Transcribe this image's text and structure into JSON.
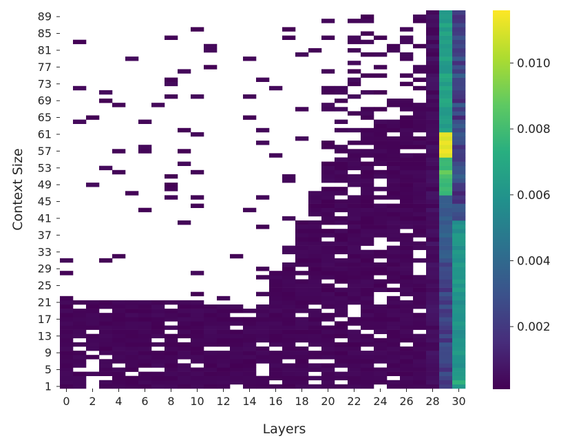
{
  "chart_data": {
    "type": "heatmap",
    "title": "",
    "xlabel": "Layers",
    "ylabel": "Context Size",
    "x_categories": [
      0,
      1,
      2,
      3,
      4,
      5,
      6,
      7,
      8,
      9,
      10,
      11,
      12,
      13,
      14,
      15,
      16,
      17,
      18,
      19,
      20,
      21,
      22,
      23,
      24,
      25,
      26,
      27,
      28,
      29,
      30
    ],
    "y_range": [
      1,
      90
    ],
    "y_order": "ascending-from-bottom",
    "x_tick_labels": [
      "0",
      "2",
      "4",
      "6",
      "8",
      "10",
      "12",
      "14",
      "16",
      "18",
      "20",
      "22",
      "24",
      "26",
      "28",
      "30"
    ],
    "y_tick_labels": [
      "1",
      "5",
      "9",
      "13",
      "17",
      "21",
      "25",
      "29",
      "33",
      "37",
      "41",
      "45",
      "49",
      "53",
      "57",
      "61",
      "65",
      "69",
      "73",
      "77",
      "81",
      "85",
      "89"
    ],
    "missing_value_display": "blank (white)",
    "colormap": "viridis",
    "colorbar": {
      "vmin": 0.0001,
      "vmax": 0.0116,
      "ticks": [
        0.002,
        0.004,
        0.006,
        0.008,
        0.01
      ],
      "tick_labels": [
        "0.002",
        "0.004",
        "0.006",
        "0.008",
        "0.010"
      ]
    },
    "column_values": {
      "layers_0_to_27": "mostly 0.0001-0.0004 where present",
      "layer_28": "0.0002-0.0008",
      "layer_29": "0.001-0.004 for contexts 1-45; 0.006-0.0116 for contexts 47-62 (peak ~0.0116 at 57-61); ~0.006-0.007 for 63-90",
      "layer_30": "~0.0055-0.0065 for contexts 1-40 (context 2 ~0.0075); ~0.001-0.004 for contexts 41-90"
    }
  }
}
